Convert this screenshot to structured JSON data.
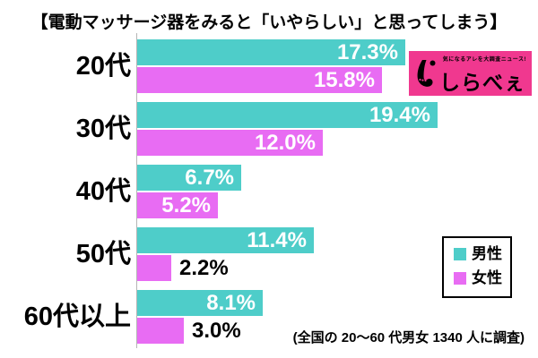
{
  "title": "【電動マッサージ器をみると「いやらしい」と思ってしまう】",
  "chart_data": {
    "type": "bar",
    "orientation": "horizontal",
    "categories": [
      "20代",
      "30代",
      "40代",
      "50代",
      "60代以上"
    ],
    "series": [
      {
        "name": "男性",
        "color": "#4ECDC9",
        "values": [
          17.3,
          19.4,
          6.7,
          11.4,
          8.1
        ]
      },
      {
        "name": "女性",
        "color": "#E86CF3",
        "values": [
          15.8,
          12.0,
          5.2,
          2.2,
          3.0
        ]
      }
    ],
    "value_suffix": "%",
    "value_decimals": 1,
    "xlim": [
      0,
      20
    ],
    "grid": false,
    "legend_position": "right"
  },
  "legend": {
    "items": [
      {
        "label": "男性",
        "color": "#4ECDC9"
      },
      {
        "label": "女性",
        "color": "#E86CF3"
      }
    ]
  },
  "logo": {
    "tagline": "気になるアレを大調査ニュース!",
    "name": "しらべぇ",
    "bg_color": "#F0388F"
  },
  "footnote": "(全国の 20〜60 代男女 1340 人に調査)"
}
